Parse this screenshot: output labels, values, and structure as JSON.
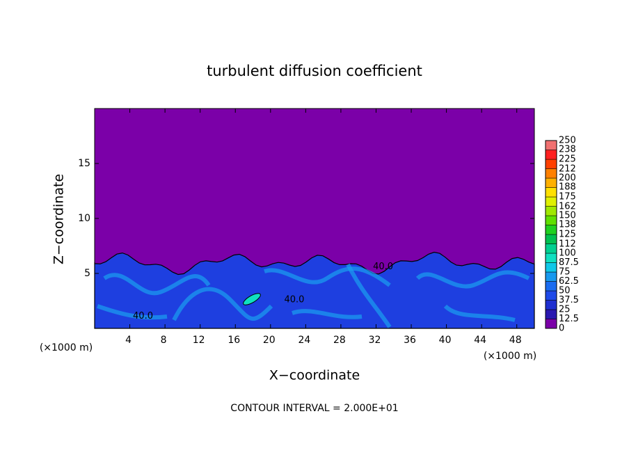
{
  "chart_data": {
    "type": "contour",
    "title": "turbulent diffusion coefficient",
    "xlabel": "X−coordinate",
    "ylabel": "Z−coordinate",
    "x_unit_left": "(×1000 m)",
    "x_unit_right": "(×1000 m)",
    "footer": "CONTOUR INTERVAL = 2.000E+01",
    "xlim": [
      0,
      50
    ],
    "ylim": [
      0,
      20
    ],
    "xticks": [
      4,
      8,
      12,
      16,
      20,
      24,
      28,
      32,
      36,
      40,
      44,
      48
    ],
    "yticks": [
      5,
      10,
      15
    ],
    "background_color": "#7b00a8",
    "contour_labels": [
      {
        "x": 5.5,
        "y": 1.1,
        "value": 40,
        "label": "40.0"
      },
      {
        "x": 22.7,
        "y": 2.6,
        "value": 40,
        "label": "40.0"
      },
      {
        "x": 32.8,
        "y": 5.6,
        "value": 40,
        "label": "40.0"
      }
    ],
    "colorbar": {
      "lim": [
        0,
        250
      ],
      "ticks": [
        0,
        12.5,
        25,
        37.5,
        50,
        62.5,
        75,
        87.5,
        100,
        112,
        125,
        138,
        150,
        162,
        175,
        188,
        200,
        212,
        225,
        238,
        250
      ],
      "colors": [
        "#7b00a8",
        "#2a18b0",
        "#1f2fd0",
        "#1e4ae8",
        "#1a6cf0",
        "#1899ee",
        "#10c8e8",
        "#10e0c0",
        "#00d090",
        "#00c050",
        "#20d020",
        "#60e000",
        "#a0e800",
        "#e0f000",
        "#ffe000",
        "#ffb000",
        "#ff8000",
        "#ff4000",
        "#ff2020",
        "#f07070"
      ]
    }
  }
}
